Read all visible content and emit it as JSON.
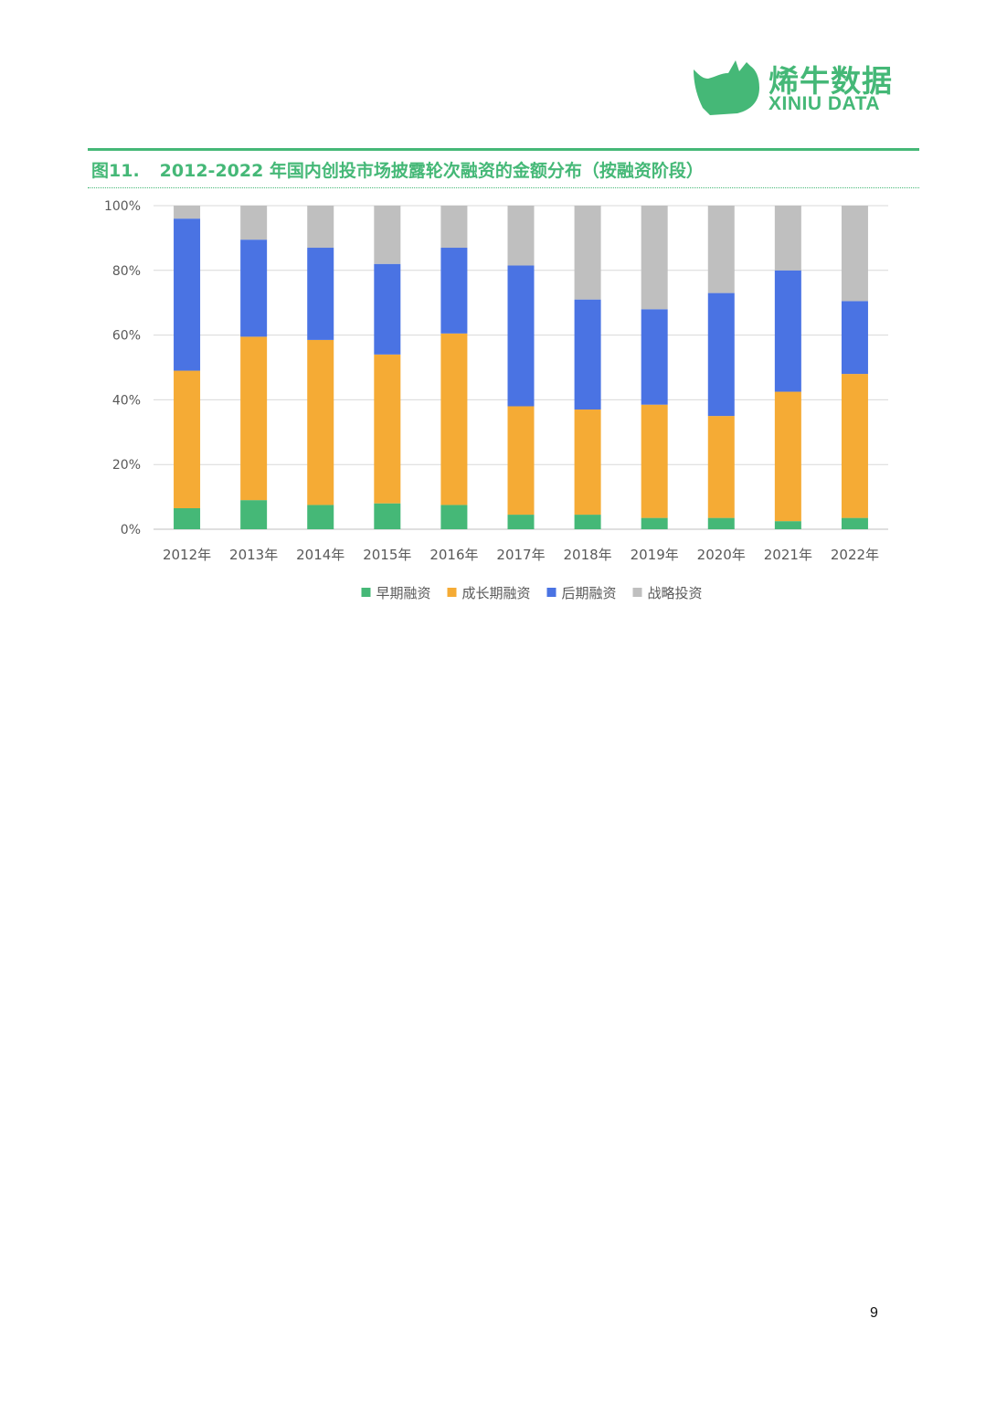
{
  "brand": {
    "name_cn": "烯牛数据",
    "name_en": "XINIU DATA",
    "color": "#45b877",
    "logo_icon": "rhino-icon"
  },
  "figure": {
    "number": "图11.",
    "title": "2012-2022 年国内创投市场披露轮次融资的金额分布（按融资阶段）"
  },
  "chart_data": {
    "type": "bar",
    "stacked": true,
    "title": "",
    "xlabel": "",
    "ylabel": "",
    "ylim": [
      0,
      100
    ],
    "yticks": [
      "0%",
      "20%",
      "40%",
      "60%",
      "80%",
      "100%"
    ],
    "grid": true,
    "legend_position": "bottom",
    "categories": [
      "2012年",
      "2013年",
      "2014年",
      "2015年",
      "2016年",
      "2017年",
      "2018年",
      "2019年",
      "2020年",
      "2021年",
      "2022年"
    ],
    "series": [
      {
        "name": "早期融资",
        "color": "#45b877",
        "values": [
          6.5,
          9,
          7.5,
          8,
          7.5,
          4.5,
          4.5,
          3.5,
          3.5,
          2.5,
          3.5
        ]
      },
      {
        "name": "成长期融资",
        "color": "#f5ab35",
        "values": [
          42.5,
          50.5,
          51,
          46,
          53,
          33.5,
          32.5,
          35,
          31.5,
          40,
          44.5
        ]
      },
      {
        "name": "后期融资",
        "color": "#4a73e3",
        "values": [
          47,
          30,
          28.5,
          28,
          26.5,
          43.5,
          34,
          29.5,
          38,
          37.5,
          22.5
        ]
      },
      {
        "name": "战略投资",
        "color": "#bfbfbf",
        "values": [
          4,
          10.5,
          13,
          18,
          13,
          18.5,
          29,
          32,
          27,
          20,
          29.5
        ]
      }
    ]
  },
  "page_number": "9"
}
